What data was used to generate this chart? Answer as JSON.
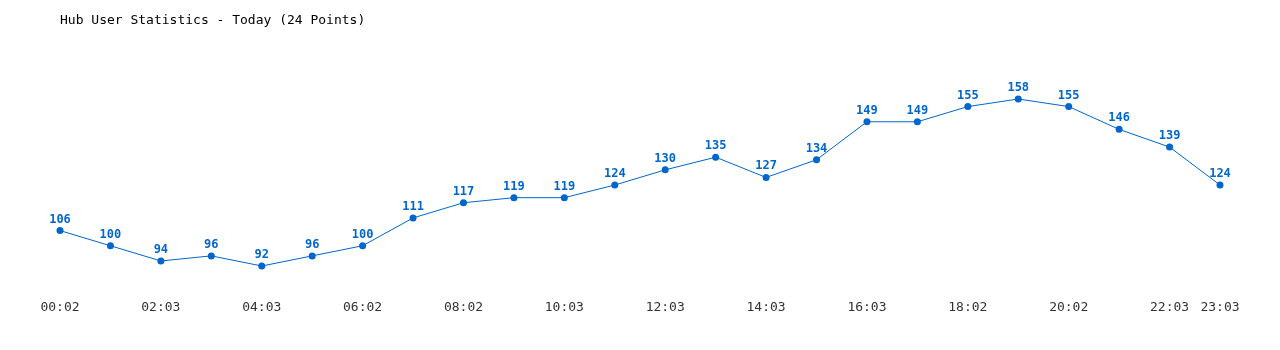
{
  "chart_data": {
    "type": "line",
    "title": "Hub User Statistics - Today (24 Points)",
    "categories": [
      "00:02",
      null,
      "02:03",
      null,
      "04:03",
      null,
      "06:02",
      null,
      "08:02",
      null,
      "10:03",
      null,
      "12:03",
      null,
      "14:03",
      null,
      "16:03",
      null,
      "18:02",
      null,
      "20:02",
      null,
      "22:03",
      "23:03"
    ],
    "series": [
      {
        "color": "#0066cc",
        "values": [
          106,
          100,
          94,
          96,
          92,
          96,
          100,
          111,
          117,
          119,
          119,
          124,
          130,
          135,
          127,
          134,
          149,
          149,
          155,
          158,
          155,
          146,
          139,
          124
        ]
      }
    ],
    "data_labels": true,
    "grid": false,
    "legend": false,
    "marker": "circle",
    "line_style": "solid"
  }
}
